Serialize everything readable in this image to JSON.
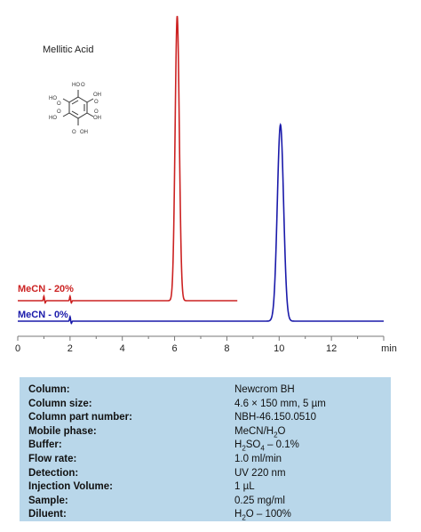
{
  "compound": "Mellitic Acid",
  "chart_data": {
    "type": "line",
    "xlim": [
      0,
      14
    ],
    "x_ticks": [
      0,
      2,
      4,
      6,
      8,
      10,
      12
    ],
    "x_tick_labels": [
      "0",
      "2",
      "4",
      "6",
      "8",
      "10",
      "12"
    ],
    "x_unit": "min",
    "grid": false,
    "series": [
      {
        "name": "MeCN - 20%",
        "color": "#cc2222",
        "x_range": [
          0,
          8.4
        ],
        "peak": {
          "x": 6.1,
          "height": 1.0
        },
        "blips": [
          1.0,
          2.0
        ]
      },
      {
        "name": "MeCN - 0%",
        "color": "#1a1aaa",
        "x_range": [
          0,
          14
        ],
        "peak": {
          "x": 10.05,
          "height": 0.69
        },
        "blips": [
          2.0
        ]
      }
    ]
  },
  "conditions": [
    {
      "label": "Column:",
      "value": "Newcrom BH"
    },
    {
      "label": "Column size:",
      "value": "4.6 × 150 mm, 5 µm"
    },
    {
      "label": "Column part number:",
      "value": "NBH-46.150.0510"
    },
    {
      "label": "Mobile phase:",
      "value": "MeCN/H2O"
    },
    {
      "label": "Buffer:",
      "value": "H2SO4 – 0.1%"
    },
    {
      "label": "Flow rate:",
      "value": "1.0 ml/min"
    },
    {
      "label": "Detection:",
      "value": "UV 220 nm"
    },
    {
      "label": "Injection Volume:",
      "value": "1 µL"
    },
    {
      "label": "Sample:",
      "value": "0.25 mg/ml"
    },
    {
      "label": "Diluent:",
      "value": "H2O – 100%"
    }
  ]
}
